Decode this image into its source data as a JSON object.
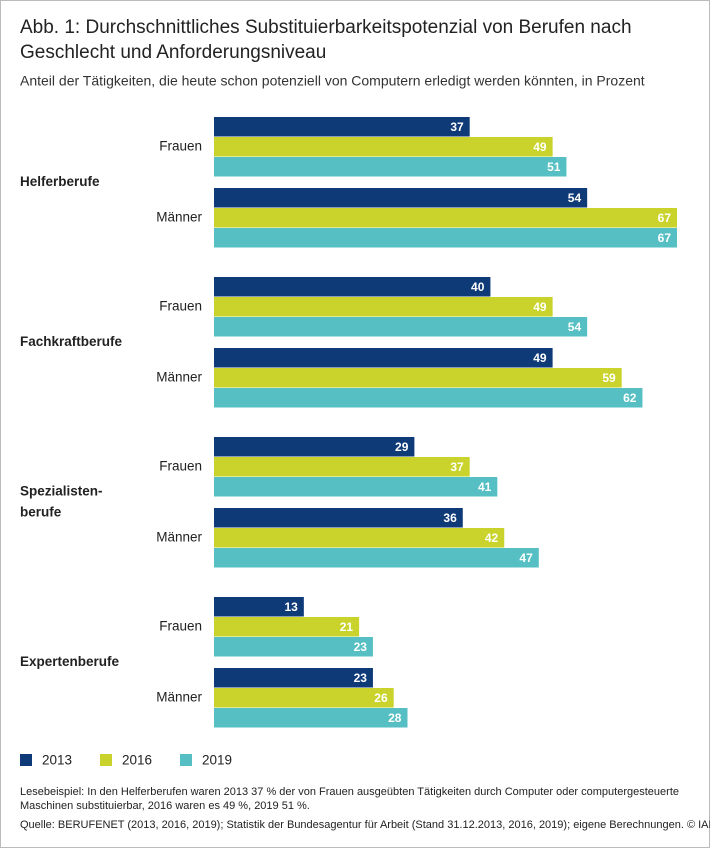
{
  "chart_data": {
    "type": "bar",
    "orientation": "horizontal",
    "title": [
      "Abb. 1: Durchschnittliches Substituierbarkeitspotenzial von Berufen nach",
      "Geschlecht und Anforderungsniveau"
    ],
    "subtitle": "Anteil der Tätigkeiten, die heute schon potenziell von Computern erledigt werden könnten, in Prozent",
    "groups": [
      [
        "Helferberufe"
      ],
      [
        "Fachkraftberufe"
      ],
      [
        "Spezialisten-",
        "berufe"
      ],
      [
        "Expertenberufe"
      ]
    ],
    "categories": [
      "Frauen",
      "Männer",
      "Frauen",
      "Männer",
      "Frauen",
      "Männer",
      "Frauen",
      "Männer"
    ],
    "series": [
      {
        "name": "2013",
        "color": "#0f3a78",
        "values": [
          37,
          54,
          40,
          49,
          29,
          36,
          13,
          23
        ]
      },
      {
        "name": "2016",
        "color": "#c9d32b",
        "values": [
          49,
          67,
          49,
          59,
          37,
          42,
          21,
          26
        ]
      },
      {
        "name": "2019",
        "color": "#55bfc3",
        "values": [
          51,
          67,
          54,
          62,
          41,
          47,
          23,
          28
        ]
      }
    ],
    "notes": [
      "Lesebeispiel: In den Helferberufen waren 2013 37 % der von Frauen ausgeübten Tätigkeiten durch Computer oder computergesteuerte",
      "Maschinen substituierbar, 2016 waren es 49 %, 2019 51 %.",
      "Quelle: BERUFENET (2013, 2016, 2019); Statistik der Bundesagentur für Arbeit (Stand 31.12.2013, 2016, 2019); eigene Berechnungen. © IAB"
    ]
  }
}
